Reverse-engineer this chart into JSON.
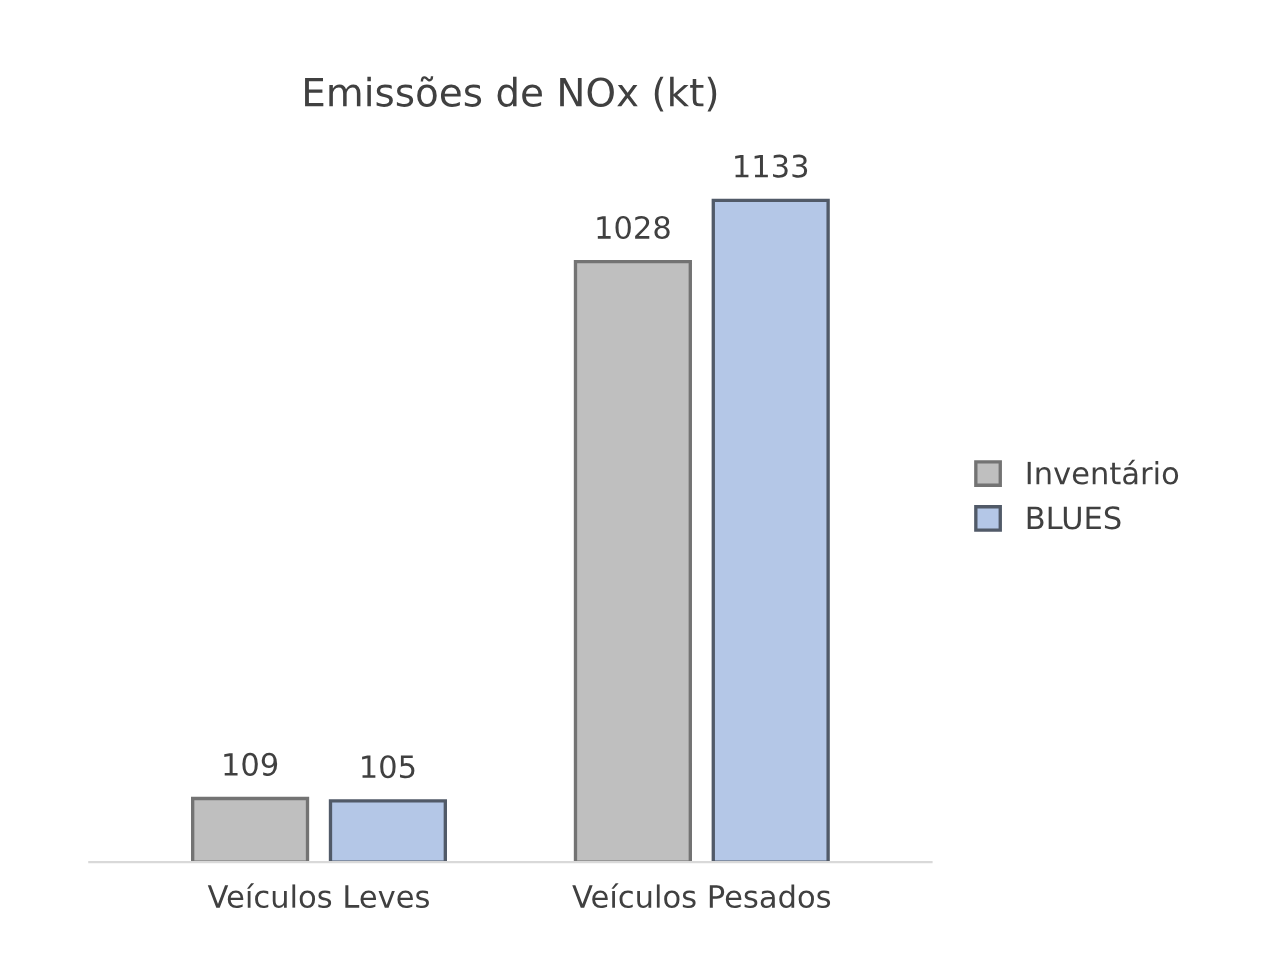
{
  "chart_data": {
    "type": "bar",
    "title": "Emissões de NOx (kt)",
    "categories": [
      "Veículos Leves",
      "Veículos Pesados"
    ],
    "series": [
      {
        "name": "Inventário",
        "color": "#bfbfbf",
        "values": [
          109,
          1028
        ]
      },
      {
        "name": "BLUES",
        "color": "#b4c7e7",
        "values": [
          105,
          1133
        ]
      }
    ],
    "data_labels": true,
    "legend": "right",
    "grid": false,
    "tick_labels": "x"
  }
}
